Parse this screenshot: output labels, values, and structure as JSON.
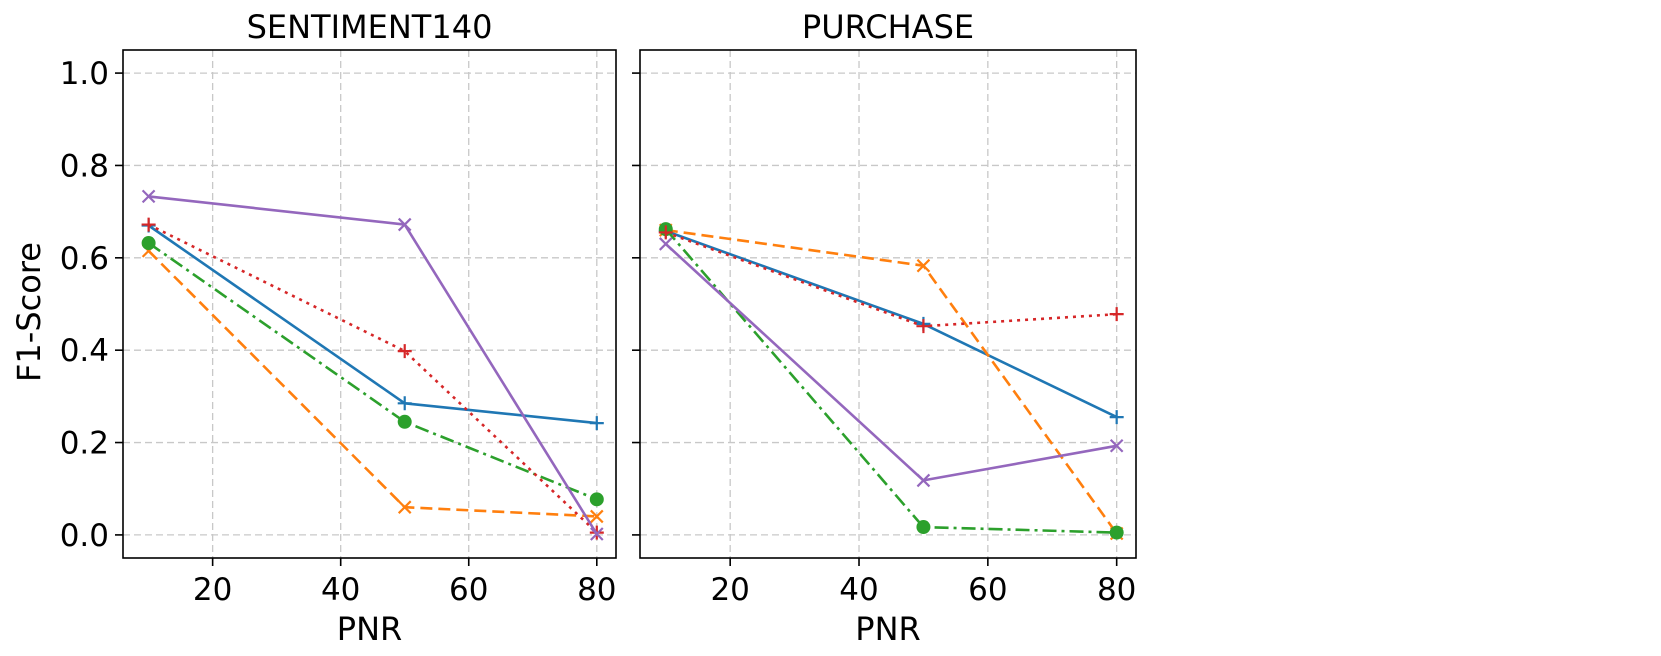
{
  "chart_data": [
    {
      "type": "line",
      "title": "SENTIMENT140",
      "xlabel": "PNR",
      "ylabel": "F1-Score",
      "xlim": [
        6,
        83
      ],
      "ylim": [
        -0.05,
        1.05
      ],
      "xticks": [
        20,
        40,
        60,
        80
      ],
      "yticks": [
        0.0,
        0.2,
        0.4,
        0.6,
        0.8,
        1.0
      ],
      "grid": true,
      "x": [
        10,
        50,
        80
      ],
      "series": [
        {
          "color": "#1f77b4",
          "linestyle": "solid",
          "marker": "plus",
          "values": [
            0.67,
            0.285,
            0.242
          ]
        },
        {
          "color": "#ff7f0e",
          "linestyle": "dashed",
          "marker": "x",
          "values": [
            0.615,
            0.06,
            0.04
          ]
        },
        {
          "color": "#2ca02c",
          "linestyle": "dashdot",
          "marker": "circle",
          "values": [
            0.632,
            0.245,
            0.077
          ]
        },
        {
          "color": "#d62728",
          "linestyle": "dotted",
          "marker": "plus",
          "values": [
            0.672,
            0.398,
            0.005
          ]
        },
        {
          "color": "#9467bd",
          "linestyle": "solid",
          "marker": "x",
          "values": [
            0.733,
            0.672,
            0.002
          ]
        }
      ]
    },
    {
      "type": "line",
      "title": "PURCHASE",
      "xlabel": "PNR",
      "ylabel": "",
      "xlim": [
        6,
        83
      ],
      "ylim": [
        -0.05,
        1.05
      ],
      "xticks": [
        20,
        40,
        60,
        80
      ],
      "yticks": [
        0.0,
        0.2,
        0.4,
        0.6,
        0.8,
        1.0
      ],
      "grid": true,
      "x": [
        10,
        50,
        80
      ],
      "series": [
        {
          "color": "#1f77b4",
          "linestyle": "solid",
          "marker": "plus",
          "values": [
            0.658,
            0.457,
            0.255
          ]
        },
        {
          "color": "#ff7f0e",
          "linestyle": "dashed",
          "marker": "x",
          "values": [
            0.66,
            0.583,
            0.003
          ]
        },
        {
          "color": "#2ca02c",
          "linestyle": "dashdot",
          "marker": "circle",
          "values": [
            0.662,
            0.017,
            0.005
          ]
        },
        {
          "color": "#d62728",
          "linestyle": "dotted",
          "marker": "plus",
          "values": [
            0.655,
            0.452,
            0.478
          ]
        },
        {
          "color": "#9467bd",
          "linestyle": "solid",
          "marker": "x",
          "values": [
            0.63,
            0.118,
            0.193
          ]
        }
      ]
    }
  ]
}
